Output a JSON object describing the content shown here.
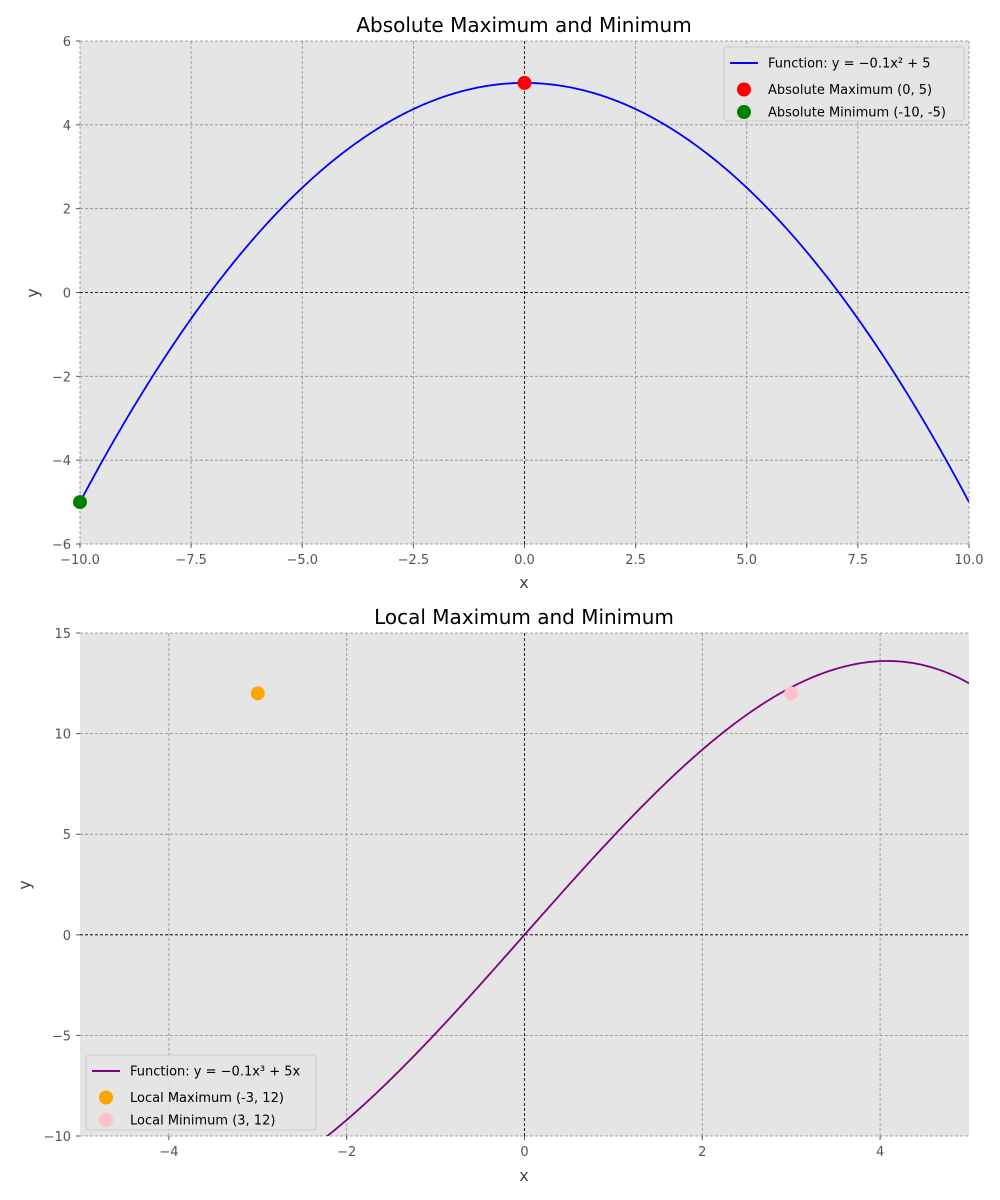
{
  "chart_data": [
    {
      "type": "line",
      "title": "Absolute Maximum and Minimum",
      "xlabel": "x",
      "ylabel": "y",
      "xlim": [
        -10,
        10
      ],
      "ylim": [
        -6,
        6
      ],
      "grid": true,
      "background": "#e5e5e5",
      "xticks": [
        -10.0,
        -7.5,
        -5.0,
        -2.5,
        0.0,
        2.5,
        5.0,
        7.5,
        10.0
      ],
      "xtick_labels": [
        "−10.0",
        "−7.5",
        "−5.0",
        "−2.5",
        "0.0",
        "2.5",
        "5.0",
        "7.5",
        "10.0"
      ],
      "yticks": [
        -6,
        -4,
        -2,
        0,
        2,
        4,
        6
      ],
      "ytick_labels": [
        "−6",
        "−4",
        "−2",
        "0",
        "2",
        "4",
        "6"
      ],
      "legend_position": "top-right",
      "series": [
        {
          "name": "Function: y = −0.1x² + 5",
          "kind": "curve",
          "color": "#0000ff",
          "x_range": [
            -10,
            10
          ],
          "coefficients": {
            "c3": 0,
            "c2": -0.1,
            "c1": 0,
            "c0": 5
          }
        }
      ],
      "points": [
        {
          "name": "Absolute Maximum (0, 5)",
          "x": 0,
          "y": 5,
          "color": "#ff0000"
        },
        {
          "name": "Absolute Minimum (-10, -5)",
          "x": -10,
          "y": -5,
          "color": "#008000"
        }
      ]
    },
    {
      "type": "line",
      "title": "Local Maximum and Minimum",
      "xlabel": "x",
      "ylabel": "y",
      "xlim": [
        -5,
        5
      ],
      "ylim": [
        -10,
        15
      ],
      "grid": true,
      "background": "#e5e5e5",
      "xticks": [
        -4,
        -2,
        0,
        2,
        4
      ],
      "xtick_labels": [
        "−4",
        "−2",
        "0",
        "2",
        "4"
      ],
      "yticks": [
        -10,
        -5,
        0,
        5,
        10,
        15
      ],
      "ytick_labels": [
        "−10",
        "−5",
        "0",
        "5",
        "10",
        "15"
      ],
      "legend_position": "bottom-left",
      "series": [
        {
          "name": "Function: y = −0.1x³ + 5x",
          "kind": "curve",
          "color": "#800080",
          "x_range": [
            -5,
            5
          ],
          "coefficients": {
            "c3": -0.1,
            "c2": 0,
            "c1": 5,
            "c0": 0
          }
        }
      ],
      "points": [
        {
          "name": "Local Maximum (-3, 12)",
          "x": -3,
          "y": 12,
          "color": "#ffa500"
        },
        {
          "name": "Local Minimum (3, 12)",
          "x": 3,
          "y": 12,
          "color": "#ffc0cb"
        }
      ]
    }
  ]
}
